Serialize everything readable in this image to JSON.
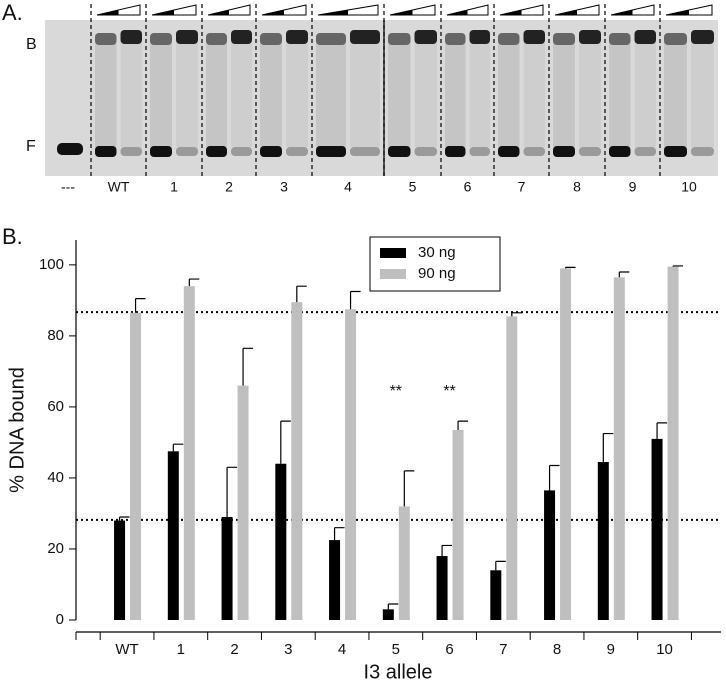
{
  "panel_a": {
    "label": "A.",
    "band_labels": [
      "B",
      "F"
    ],
    "lane_labels": [
      "---",
      "WT",
      "1",
      "2",
      "3",
      "4",
      "5",
      "6",
      "7",
      "8",
      "9",
      "10"
    ]
  },
  "chart_data": {
    "type": "bar",
    "panel_label": "B.",
    "y_label": "% DNA bound",
    "x_label": "I3 allele",
    "categories": [
      "WT",
      "1",
      "2",
      "3",
      "4",
      "5",
      "6",
      "7",
      "8",
      "9",
      "10"
    ],
    "series": [
      {
        "name": "30 ng",
        "color": "#000000",
        "values": [
          28,
          47.5,
          29,
          44,
          22.5,
          3,
          18,
          14,
          36.5,
          44.5,
          51
        ],
        "errors": [
          1,
          2,
          14,
          12,
          3.5,
          1.5,
          3,
          2.5,
          7,
          8,
          4.5
        ]
      },
      {
        "name": "90 ng",
        "color": "#bfbfbf",
        "values": [
          86.5,
          94,
          66,
          89.5,
          87.5,
          32,
          53.5,
          85.5,
          99,
          96.5,
          99.5
        ],
        "errors": [
          4,
          2,
          10.5,
          4.5,
          5,
          10,
          2.5,
          1,
          0.3,
          1.5,
          0.2
        ]
      }
    ],
    "reference_lines": [
      86.7,
      28.2
    ],
    "annotations": [
      {
        "text": "**",
        "x": "5"
      },
      {
        "text": "**",
        "x": "6"
      }
    ],
    "ylim": [
      0,
      107
    ],
    "yticks": [
      0,
      20,
      40,
      60,
      80,
      100
    ],
    "legend": "top center",
    "grid": false
  }
}
